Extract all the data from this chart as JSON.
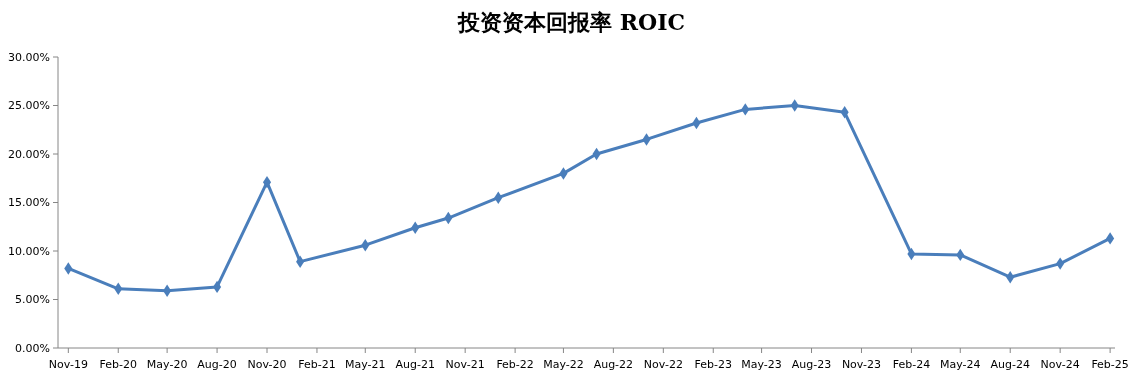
{
  "chart_data": {
    "type": "line",
    "title": "投资资本回报率 ROIC",
    "x": [
      "2019-11",
      "2020-02",
      "2020-05",
      "2020-08",
      "2020-11",
      "2021-01",
      "2021-05",
      "2021-08",
      "2021-10",
      "2022-01",
      "2022-05",
      "2022-07",
      "2022-10",
      "2023-01",
      "2023-04",
      "2023-07",
      "2023-10",
      "2024-02",
      "2024-05",
      "2024-08",
      "2024-11",
      "2025-02"
    ],
    "series": [
      {
        "color": "#4a7ebb",
        "values": [
          8.2,
          6.1,
          5.9,
          6.3,
          17.1,
          8.9,
          10.6,
          12.4,
          13.4,
          15.5,
          18.0,
          20.0,
          21.5,
          23.2,
          24.6,
          25.0,
          24.3,
          9.7,
          9.6,
          7.3,
          8.7,
          11.3
        ]
      }
    ],
    "xlim": [
      "2019-10-13",
      "2025-02-10"
    ],
    "xticks": [
      {
        "value": "2019-11",
        "label": "Nov-19"
      },
      {
        "value": "2020-02",
        "label": "Feb-20"
      },
      {
        "value": "2020-05",
        "label": "May-20"
      },
      {
        "value": "2020-08",
        "label": "Aug-20"
      },
      {
        "value": "2020-11",
        "label": "Nov-20"
      },
      {
        "value": "2021-02",
        "label": "Feb-21"
      },
      {
        "value": "2021-05",
        "label": "May-21"
      },
      {
        "value": "2021-08",
        "label": "Aug-21"
      },
      {
        "value": "2021-11",
        "label": "Nov-21"
      },
      {
        "value": "2022-02",
        "label": "Feb-22"
      },
      {
        "value": "2022-05",
        "label": "May-22"
      },
      {
        "value": "2022-08",
        "label": "Aug-22"
      },
      {
        "value": "2022-11",
        "label": "Nov-22"
      },
      {
        "value": "2023-02",
        "label": "Feb-23"
      },
      {
        "value": "2023-05",
        "label": "May-23"
      },
      {
        "value": "2023-08",
        "label": "Aug-23"
      },
      {
        "value": "2023-11",
        "label": "Nov-23"
      },
      {
        "value": "2024-02",
        "label": "Feb-24"
      },
      {
        "value": "2024-05",
        "label": "May-24"
      },
      {
        "value": "2024-08",
        "label": "Aug-24"
      },
      {
        "value": "2024-11",
        "label": "Nov-24"
      },
      {
        "value": "2025-02",
        "label": "Feb-25"
      }
    ],
    "ylim": [
      0,
      30
    ],
    "yticks": [
      {
        "value": 0,
        "label": "0.00%"
      },
      {
        "value": 5,
        "label": "5.00%"
      },
      {
        "value": 10,
        "label": "10.00%"
      },
      {
        "value": 15,
        "label": "15.00%"
      },
      {
        "value": 20,
        "label": "20.00%"
      },
      {
        "value": 25,
        "label": "25.00%"
      },
      {
        "value": 30,
        "label": "30.00%"
      }
    ],
    "grid": false,
    "marker": "diamond",
    "line_style": "solid"
  }
}
